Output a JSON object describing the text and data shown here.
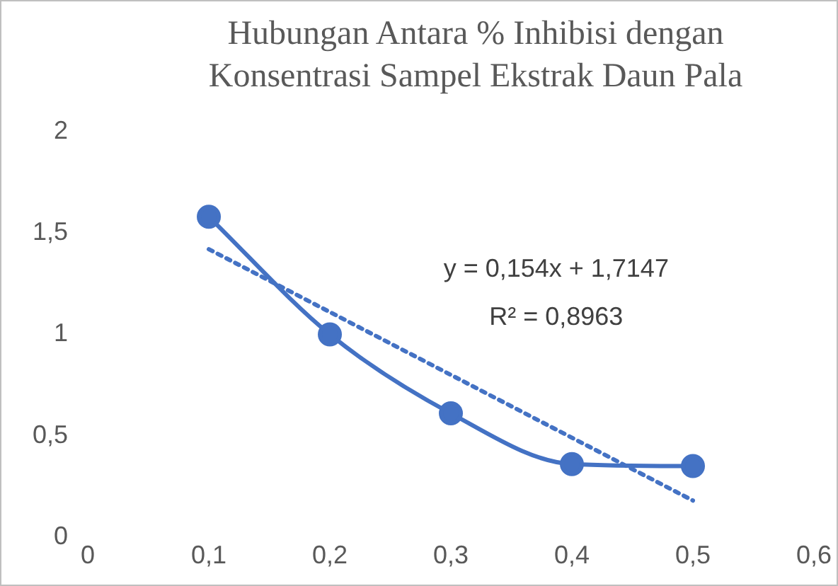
{
  "chart_data": {
    "type": "line",
    "title": "Hubungan Antara % Inhibisi dengan Konsentrasi Sampel Ekstrak Daun Pala",
    "x": [
      0.1,
      0.2,
      0.3,
      0.4,
      0.5
    ],
    "series": [
      {
        "color": "#4472c4",
        "values": [
          1.58,
          1.0,
          0.61,
          0.36,
          0.35
        ],
        "marker": "circle",
        "line_style": "solid"
      },
      {
        "color": "#4472c4",
        "x": [
          0.1,
          0.5
        ],
        "values": [
          1.42,
          0.18
        ],
        "marker": "none",
        "line_style": "dotted"
      }
    ],
    "xlim": [
      0,
      0.6
    ],
    "xticks": [
      0,
      {
        "value": 0.1,
        "label": "0,1"
      },
      {
        "value": 0.2,
        "label": "0,2"
      },
      {
        "value": 0.3,
        "label": "0,3"
      },
      {
        "value": 0.4,
        "label": "0,4"
      },
      {
        "value": 0.5,
        "label": "0,5"
      },
      {
        "value": 0.6,
        "label": "0,6"
      }
    ],
    "ylim": [
      0,
      2
    ],
    "yticks": [
      0,
      {
        "value": 0.5,
        "label": "0,5"
      },
      1,
      {
        "value": 1.5,
        "label": "1,5"
      },
      2
    ],
    "annotations": [
      "y = 0,154x + 1,7147",
      "R² = 0,8963"
    ],
    "grid": false,
    "legend": false
  }
}
